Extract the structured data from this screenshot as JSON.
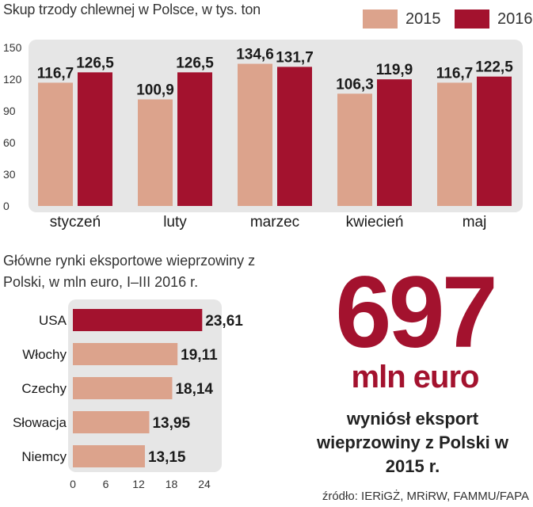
{
  "colors": {
    "y2015": "#dca38c",
    "y2016": "#a3122e",
    "panel": "#e6e6e6"
  },
  "chart_data": [
    {
      "type": "bar",
      "title": "Skup trzody chlewnej w Polsce, w tys. ton",
      "categories": [
        "styczeń",
        "luty",
        "marzec",
        "kwiecień",
        "maj"
      ],
      "series": [
        {
          "name": "2015",
          "values": [
            116.7,
            100.9,
            134.6,
            106.3,
            116.7
          ],
          "labels": [
            "116,7",
            "100,9",
            "134,6",
            "106,3",
            "116,7"
          ]
        },
        {
          "name": "2016",
          "values": [
            126.5,
            126.5,
            131.7,
            119.9,
            122.5
          ],
          "labels": [
            "126,5",
            "126,5",
            "131,7",
            "119,9",
            "122,5"
          ]
        }
      ],
      "yticks": [
        "0",
        "30",
        "60",
        "90",
        "120",
        "150"
      ],
      "ylim": [
        0,
        150
      ],
      "legend": "top-right",
      "grid": false
    },
    {
      "type": "bar",
      "orientation": "horizontal",
      "title": "Główne rynki eksportowe wieprzowiny z Polski, w mln euro, I–III 2016 r.",
      "categories": [
        "USA",
        "Włochy",
        "Czechy",
        "Słowacja",
        "Niemcy"
      ],
      "values": [
        23.61,
        19.11,
        18.14,
        13.95,
        13.15
      ],
      "labels": [
        "23,61",
        "19,11",
        "18,14",
        "13,95",
        "13,15"
      ],
      "xticks": [
        "0",
        "6",
        "12",
        "18",
        "24"
      ],
      "xlim": [
        0,
        24
      ],
      "grid": false
    }
  ],
  "callout": {
    "number": "697",
    "unit": "mln euro",
    "text": "wyniósł eksport wieprzowiny z Polski w 2015 r."
  },
  "source": "źródło: IERiGŻ, MRiRW, FAMMU/FAPA"
}
